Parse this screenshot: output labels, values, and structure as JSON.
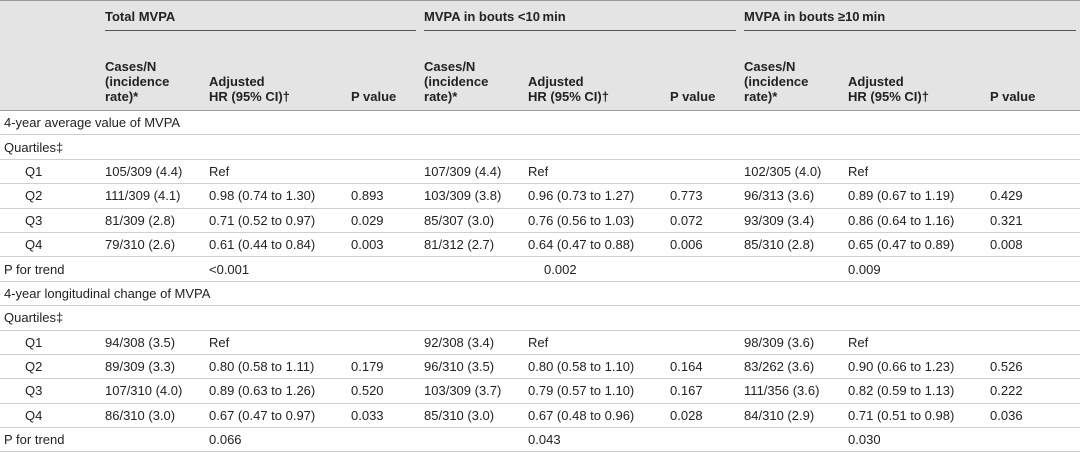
{
  "groups": [
    "Total MVPA",
    "MVPA in bouts <10 min",
    "MVPA in bouts ≥10 min"
  ],
  "subheaders": {
    "cases": [
      "Cases/N",
      "(incidence",
      "rate)*"
    ],
    "hr": [
      "Adjusted",
      "HR (95% CI)†"
    ],
    "p": "P value"
  },
  "sections": [
    {
      "title": "4-year average value of MVPA",
      "quartiles_label": "Quartiles‡",
      "rows": [
        {
          "label": "Q1",
          "cells": [
            "105/309 (4.4)",
            "Ref",
            "",
            "107/309 (4.4)",
            "Ref",
            "",
            "102/305 (4.0)",
            "Ref",
            ""
          ]
        },
        {
          "label": "Q2",
          "cells": [
            "111/309 (4.1)",
            "0.98 (0.74 to 1.30)",
            "0.893",
            "103/309 (3.8)",
            "0.96 (0.73 to 1.27)",
            "0.773",
            "96/313 (3.6)",
            "0.89 (0.67 to 1.19)",
            "0.429"
          ]
        },
        {
          "label": "Q3",
          "cells": [
            "81/309 (2.8)",
            "0.71 (0.52 to 0.97)",
            "0.029",
            "85/307 (3.0)",
            "0.76 (0.56 to 1.03)",
            "0.072",
            "93/309 (3.4)",
            "0.86 (0.64 to 1.16)",
            "0.321"
          ]
        },
        {
          "label": "Q4",
          "cells": [
            "79/310 (2.6)",
            "0.61 (0.44 to 0.84)",
            "0.003",
            "81/312 (2.7)",
            "0.64 (0.47 to 0.88)",
            "0.006",
            "85/310 (2.8)",
            "0.65 (0.47 to 0.89)",
            "0.008"
          ]
        }
      ],
      "trend_label": "P for trend",
      "trend": [
        "<0.001",
        "0.002",
        "0.009"
      ]
    },
    {
      "title": "4-year longitudinal change of MVPA",
      "quartiles_label": "Quartiles‡",
      "rows": [
        {
          "label": "Q1",
          "cells": [
            "94/308 (3.5)",
            "Ref",
            "",
            "92/308 (3.4)",
            "Ref",
            "",
            "98/309 (3.6)",
            "Ref",
            ""
          ]
        },
        {
          "label": "Q2",
          "cells": [
            "89/309 (3.3)",
            "0.80 (0.58 to 1.11)",
            "0.179",
            "96/310 (3.5)",
            "0.80 (0.58 to 1.10)",
            "0.164",
            "83/262 (3.6)",
            "0.90 (0.66 to 1.23)",
            "0.526"
          ]
        },
        {
          "label": "Q3",
          "cells": [
            "107/310 (4.0)",
            "0.89 (0.63 to 1.26)",
            "0.520",
            "103/309 (3.7)",
            "0.79 (0.57 to 1.10)",
            "0.167",
            "111/356 (3.6)",
            "0.82 (0.59 to 1.13)",
            "0.222"
          ]
        },
        {
          "label": "Q4",
          "cells": [
            "86/310 (3.0)",
            "0.67 (0.47 to 0.97)",
            "0.033",
            "85/310 (3.0)",
            "0.67 (0.48 to 0.96)",
            "0.028",
            "84/310 (2.9)",
            "0.71 (0.51 to 0.98)",
            "0.036"
          ]
        }
      ],
      "trend_label": "P for trend",
      "trend": [
        "0.066",
        "0.043",
        "0.030"
      ]
    }
  ]
}
